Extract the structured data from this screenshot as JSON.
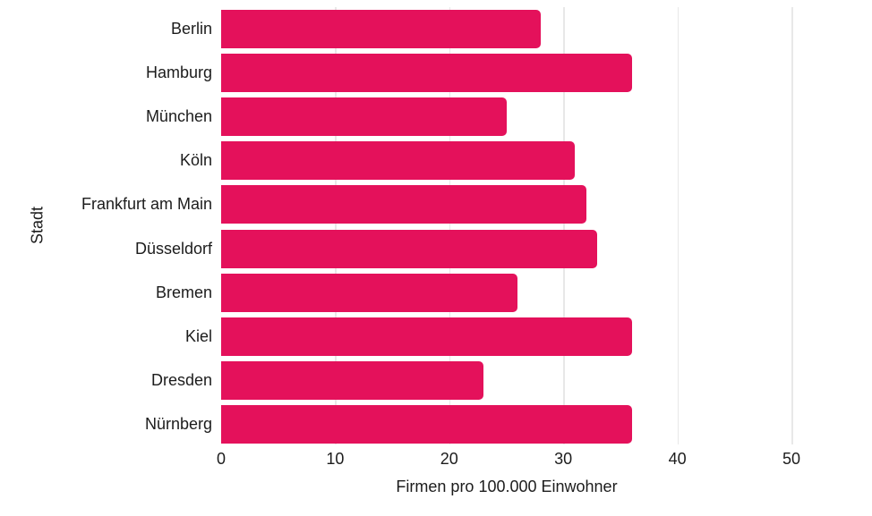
{
  "chart_data": {
    "type": "bar",
    "orientation": "horizontal",
    "title": "",
    "xlabel": "Firmen pro 100.000 Einwohner",
    "ylabel": "Stadt",
    "categories": [
      "Berlin",
      "Hamburg",
      "München",
      "Köln",
      "Frankfurt am Main",
      "Düsseldorf",
      "Bremen",
      "Kiel",
      "Dresden",
      "Nürnberg"
    ],
    "values": [
      28,
      36,
      25,
      31,
      32,
      33,
      26,
      36,
      23,
      36
    ],
    "x_ticks": [
      0,
      10,
      20,
      30,
      40,
      50
    ],
    "xlim": [
      0,
      54.5
    ],
    "grid": "vertical-only",
    "legend": "none",
    "colors": {
      "bar": "#e4115b",
      "gridline": "#e8e8e8",
      "text": "#1c1c1c",
      "background": "#ffffff"
    }
  }
}
